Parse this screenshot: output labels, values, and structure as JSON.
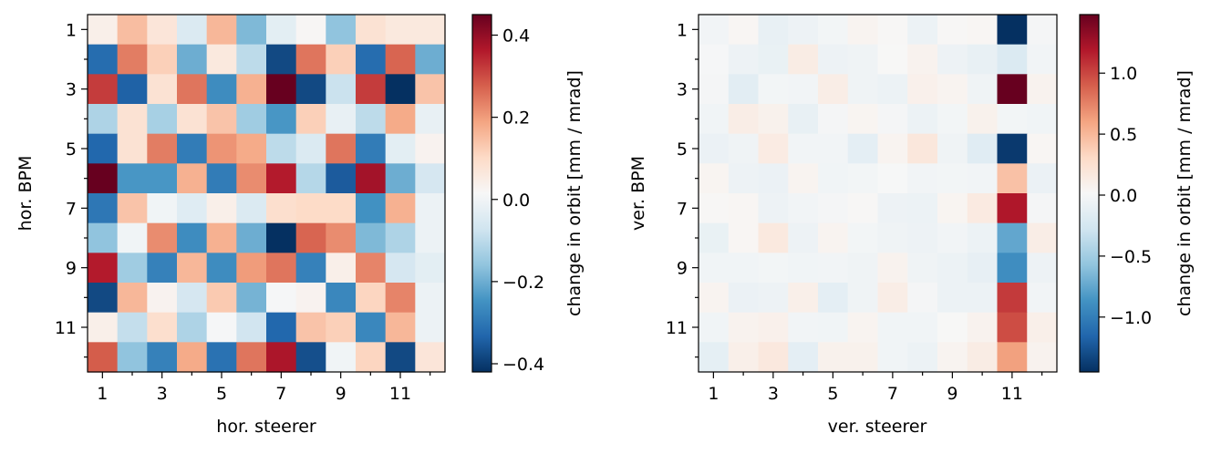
{
  "chart_data": [
    {
      "type": "heatmap",
      "xlabel": "hor. steerer",
      "ylabel": "hor. BPM",
      "x_tick_labels": [
        "1",
        "3",
        "5",
        "7",
        "9",
        "11"
      ],
      "y_tick_labels": [
        "1",
        "3",
        "5",
        "7",
        "9",
        "11"
      ],
      "colorbar_label": "change in orbit [mm / mrad]",
      "colorbar_ticks": [
        "0.4",
        "0.2",
        "0.0",
        "−0.2",
        "−0.4"
      ],
      "colorbar_tick_values": [
        0.4,
        0.2,
        0.0,
        -0.2,
        -0.4
      ],
      "vmin": -0.42,
      "vmax": 0.45,
      "colormap": "RdBu_r",
      "values": [
        [
          0.04,
          0.15,
          0.07,
          -0.05,
          0.16,
          -0.18,
          -0.03,
          0.02,
          -0.16,
          0.08,
          0.06,
          0.06
        ],
        [
          -0.32,
          0.24,
          0.12,
          -0.2,
          0.06,
          -0.1,
          -0.38,
          0.25,
          0.12,
          -0.32,
          0.27,
          -0.2
        ],
        [
          0.32,
          -0.34,
          0.08,
          0.25,
          -0.26,
          0.17,
          0.45,
          -0.38,
          -0.08,
          0.32,
          -0.42,
          0.14
        ],
        [
          -0.12,
          0.08,
          -0.13,
          0.08,
          0.14,
          -0.14,
          -0.24,
          0.12,
          -0.02,
          -0.1,
          0.18,
          -0.02
        ],
        [
          -0.33,
          0.08,
          0.24,
          -0.29,
          0.21,
          0.18,
          -0.1,
          -0.05,
          0.25,
          -0.29,
          -0.03,
          0.03
        ],
        [
          0.45,
          -0.24,
          -0.24,
          0.17,
          -0.29,
          0.22,
          0.36,
          -0.11,
          -0.35,
          0.38,
          -0.2,
          -0.06
        ],
        [
          -0.3,
          0.14,
          0.0,
          -0.04,
          0.04,
          -0.05,
          0.09,
          0.1,
          0.1,
          -0.25,
          0.17,
          -0.01
        ],
        [
          -0.16,
          0.0,
          0.22,
          -0.26,
          0.17,
          -0.2,
          -0.42,
          0.27,
          0.22,
          -0.18,
          -0.12,
          -0.01
        ],
        [
          0.36,
          -0.14,
          -0.28,
          0.16,
          -0.26,
          0.2,
          0.25,
          -0.28,
          0.04,
          0.23,
          -0.06,
          -0.03
        ],
        [
          -0.38,
          0.16,
          0.03,
          -0.06,
          0.13,
          -0.19,
          0.01,
          0.03,
          -0.27,
          0.11,
          0.23,
          -0.01
        ],
        [
          0.04,
          -0.09,
          0.09,
          -0.12,
          0.01,
          -0.07,
          -0.33,
          0.14,
          0.12,
          -0.27,
          0.16,
          -0.01
        ],
        [
          0.28,
          -0.16,
          -0.28,
          0.18,
          -0.31,
          0.25,
          0.37,
          -0.37,
          0.0,
          0.11,
          -0.38,
          0.07
        ]
      ]
    },
    {
      "type": "heatmap",
      "xlabel": "ver. steerer",
      "ylabel": "ver. BPM",
      "x_tick_labels": [
        "1",
        "3",
        "5",
        "7",
        "9",
        "11"
      ],
      "y_tick_labels": [
        "1",
        "3",
        "5",
        "7",
        "9",
        "11"
      ],
      "colorbar_label": "change in orbit [mm / mrad]",
      "colorbar_ticks": [
        "1.0",
        "0.5",
        "0.0",
        "−0.5",
        "−1.0"
      ],
      "colorbar_tick_values": [
        1.0,
        0.5,
        0.0,
        -0.5,
        -1.0
      ],
      "vmin": -1.45,
      "vmax": 1.48,
      "colormap": "RdBu_r",
      "values": [
        [
          -0.03,
          0.04,
          -0.1,
          -0.06,
          -0.02,
          0.06,
          0.03,
          -0.07,
          0.03,
          0.04,
          -1.45,
          -0.01
        ],
        [
          0.0,
          -0.06,
          -0.09,
          0.13,
          -0.06,
          -0.05,
          0.02,
          0.07,
          -0.06,
          -0.1,
          -0.2,
          -0.03
        ],
        [
          -0.01,
          -0.15,
          -0.02,
          -0.03,
          0.12,
          -0.05,
          -0.07,
          0.09,
          0.06,
          -0.05,
          1.48,
          0.07
        ],
        [
          -0.04,
          0.12,
          0.08,
          -0.1,
          -0.01,
          0.05,
          -0.01,
          -0.07,
          -0.02,
          0.08,
          -0.02,
          -0.04
        ],
        [
          -0.08,
          -0.05,
          0.14,
          -0.03,
          -0.03,
          -0.13,
          0.06,
          0.18,
          -0.05,
          -0.16,
          -1.4,
          0.04
        ],
        [
          0.05,
          -0.06,
          -0.08,
          0.06,
          -0.04,
          -0.02,
          0.01,
          -0.03,
          -0.02,
          -0.03,
          0.45,
          -0.08
        ],
        [
          0.03,
          0.04,
          -0.06,
          -0.03,
          -0.01,
          0.03,
          -0.06,
          -0.07,
          0.05,
          0.15,
          1.2,
          -0.01
        ],
        [
          -0.09,
          0.04,
          0.16,
          -0.06,
          0.06,
          -0.02,
          -0.05,
          -0.06,
          -0.03,
          -0.07,
          -0.75,
          0.12
        ],
        [
          -0.04,
          -0.04,
          -0.02,
          -0.04,
          -0.03,
          -0.05,
          0.07,
          -0.05,
          -0.07,
          -0.11,
          -0.9,
          -0.06
        ],
        [
          0.06,
          -0.08,
          -0.06,
          0.1,
          -0.13,
          -0.05,
          0.12,
          -0.01,
          -0.07,
          -0.07,
          1.05,
          -0.03
        ],
        [
          -0.04,
          0.07,
          0.09,
          -0.03,
          -0.04,
          0.06,
          -0.04,
          -0.04,
          0.02,
          0.07,
          0.97,
          0.1
        ],
        [
          -0.12,
          0.1,
          0.17,
          -0.13,
          0.08,
          0.08,
          -0.04,
          -0.07,
          0.06,
          0.13,
          0.62,
          0.07
        ]
      ]
    }
  ]
}
